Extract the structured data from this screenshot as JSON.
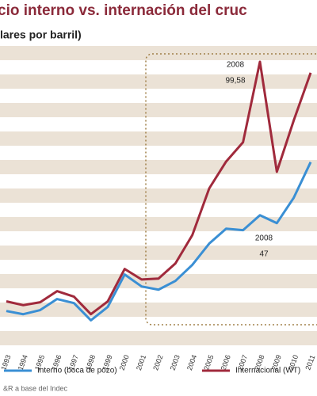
{
  "chart_data": {
    "type": "line",
    "title": "cio interno vs. internación del cruc",
    "subtitle": "lares por barril)",
    "categories": [
      "1993",
      "1994",
      "1995",
      "1996",
      "1997",
      "1998",
      "1999",
      "2000",
      "2001",
      "2002",
      "2003",
      "2004",
      "2005",
      "2006",
      "2007",
      "2008",
      "2009",
      "2010",
      "2011"
    ],
    "series": [
      {
        "name": "Interno (boca de pozo)",
        "color": "#3a8fd4",
        "values": [
          14.2,
          13.1,
          14.5,
          18.3,
          16.9,
          11,
          15.6,
          26.7,
          22.6,
          21.5,
          24.5,
          30,
          37.3,
          42.4,
          41.9,
          47,
          44.3,
          53,
          65.2
        ]
      },
      {
        "name": "Internacional (WT)",
        "color": "#a02a3c",
        "values": [
          17.5,
          16.2,
          17.2,
          21,
          19.1,
          13.1,
          17.5,
          28.6,
          25,
          25.3,
          30.5,
          40.2,
          56.2,
          65.4,
          72,
          99.58,
          61.9,
          79.5,
          95.8
        ]
      }
    ],
    "ylim": [
      0,
      105
    ],
    "annotations": [
      [
        "2008",
        "99,58"
      ],
      [
        "2008",
        "47"
      ]
    ],
    "source": "&R a base del Indec"
  }
}
